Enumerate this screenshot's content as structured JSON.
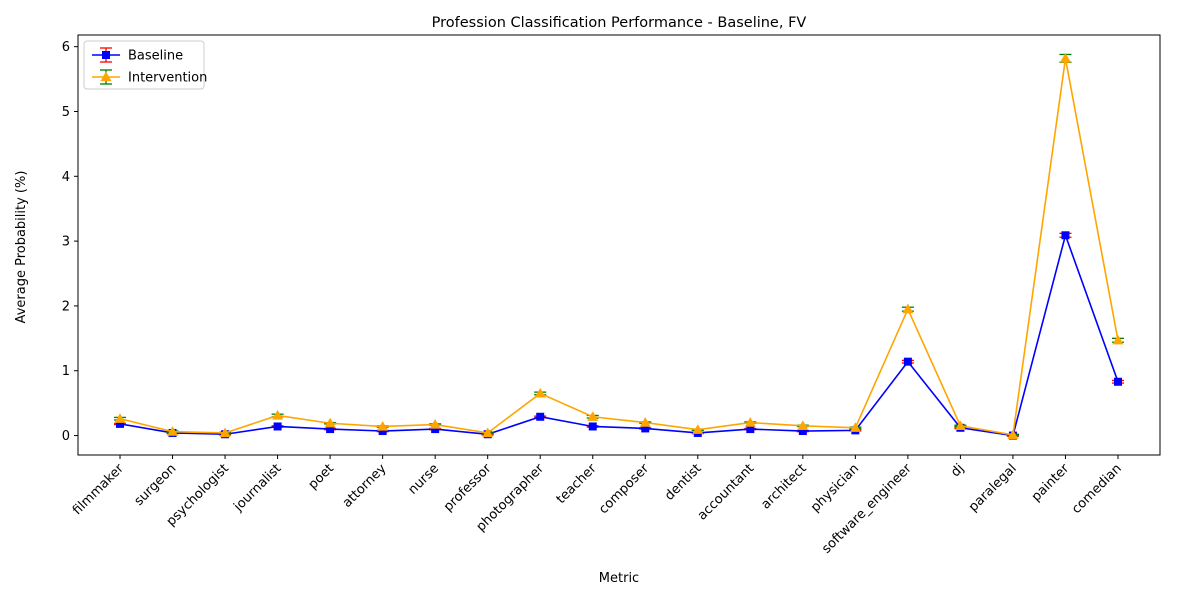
{
  "chart_data": {
    "type": "line",
    "title": "Profession Classification Performance - Baseline, FV",
    "xlabel": "Metric",
    "ylabel": "Average Probability (%)",
    "ylim": [
      -0.3,
      6.18
    ],
    "yticks": [
      0,
      1,
      2,
      3,
      4,
      5,
      6
    ],
    "grid": false,
    "legend_position": "top-left",
    "categories": [
      "filmmaker",
      "surgeon",
      "psychologist",
      "journalist",
      "poet",
      "attorney",
      "nurse",
      "professor",
      "photographer",
      "teacher",
      "composer",
      "dentist",
      "accountant",
      "architect",
      "physician",
      "software_engineer",
      "dj",
      "paralegal",
      "painter",
      "comedian"
    ],
    "series": [
      {
        "name": "Baseline",
        "color": "#0000ff",
        "errorbar_color": "#ff0000",
        "marker": "square",
        "values": [
          0.18,
          0.04,
          0.02,
          0.14,
          0.1,
          0.07,
          0.1,
          0.02,
          0.29,
          0.14,
          0.11,
          0.04,
          0.1,
          0.07,
          0.08,
          1.14,
          0.12,
          0.0,
          3.09,
          0.83
        ],
        "errors": [
          0.01,
          0.01,
          0.01,
          0.01,
          0.01,
          0.01,
          0.01,
          0.01,
          0.01,
          0.01,
          0.01,
          0.01,
          0.01,
          0.01,
          0.01,
          0.02,
          0.01,
          0.01,
          0.03,
          0.02
        ]
      },
      {
        "name": "Intervention",
        "color": "#ffa500",
        "errorbar_color": "#008000",
        "marker": "triangle",
        "values": [
          0.26,
          0.06,
          0.04,
          0.31,
          0.19,
          0.14,
          0.17,
          0.04,
          0.65,
          0.29,
          0.2,
          0.09,
          0.2,
          0.15,
          0.12,
          1.95,
          0.15,
          0.01,
          5.82,
          1.47
        ],
        "errors": [
          0.02,
          0.01,
          0.01,
          0.02,
          0.01,
          0.01,
          0.01,
          0.01,
          0.02,
          0.02,
          0.01,
          0.01,
          0.01,
          0.01,
          0.01,
          0.03,
          0.01,
          0.01,
          0.06,
          0.03
        ]
      }
    ]
  }
}
